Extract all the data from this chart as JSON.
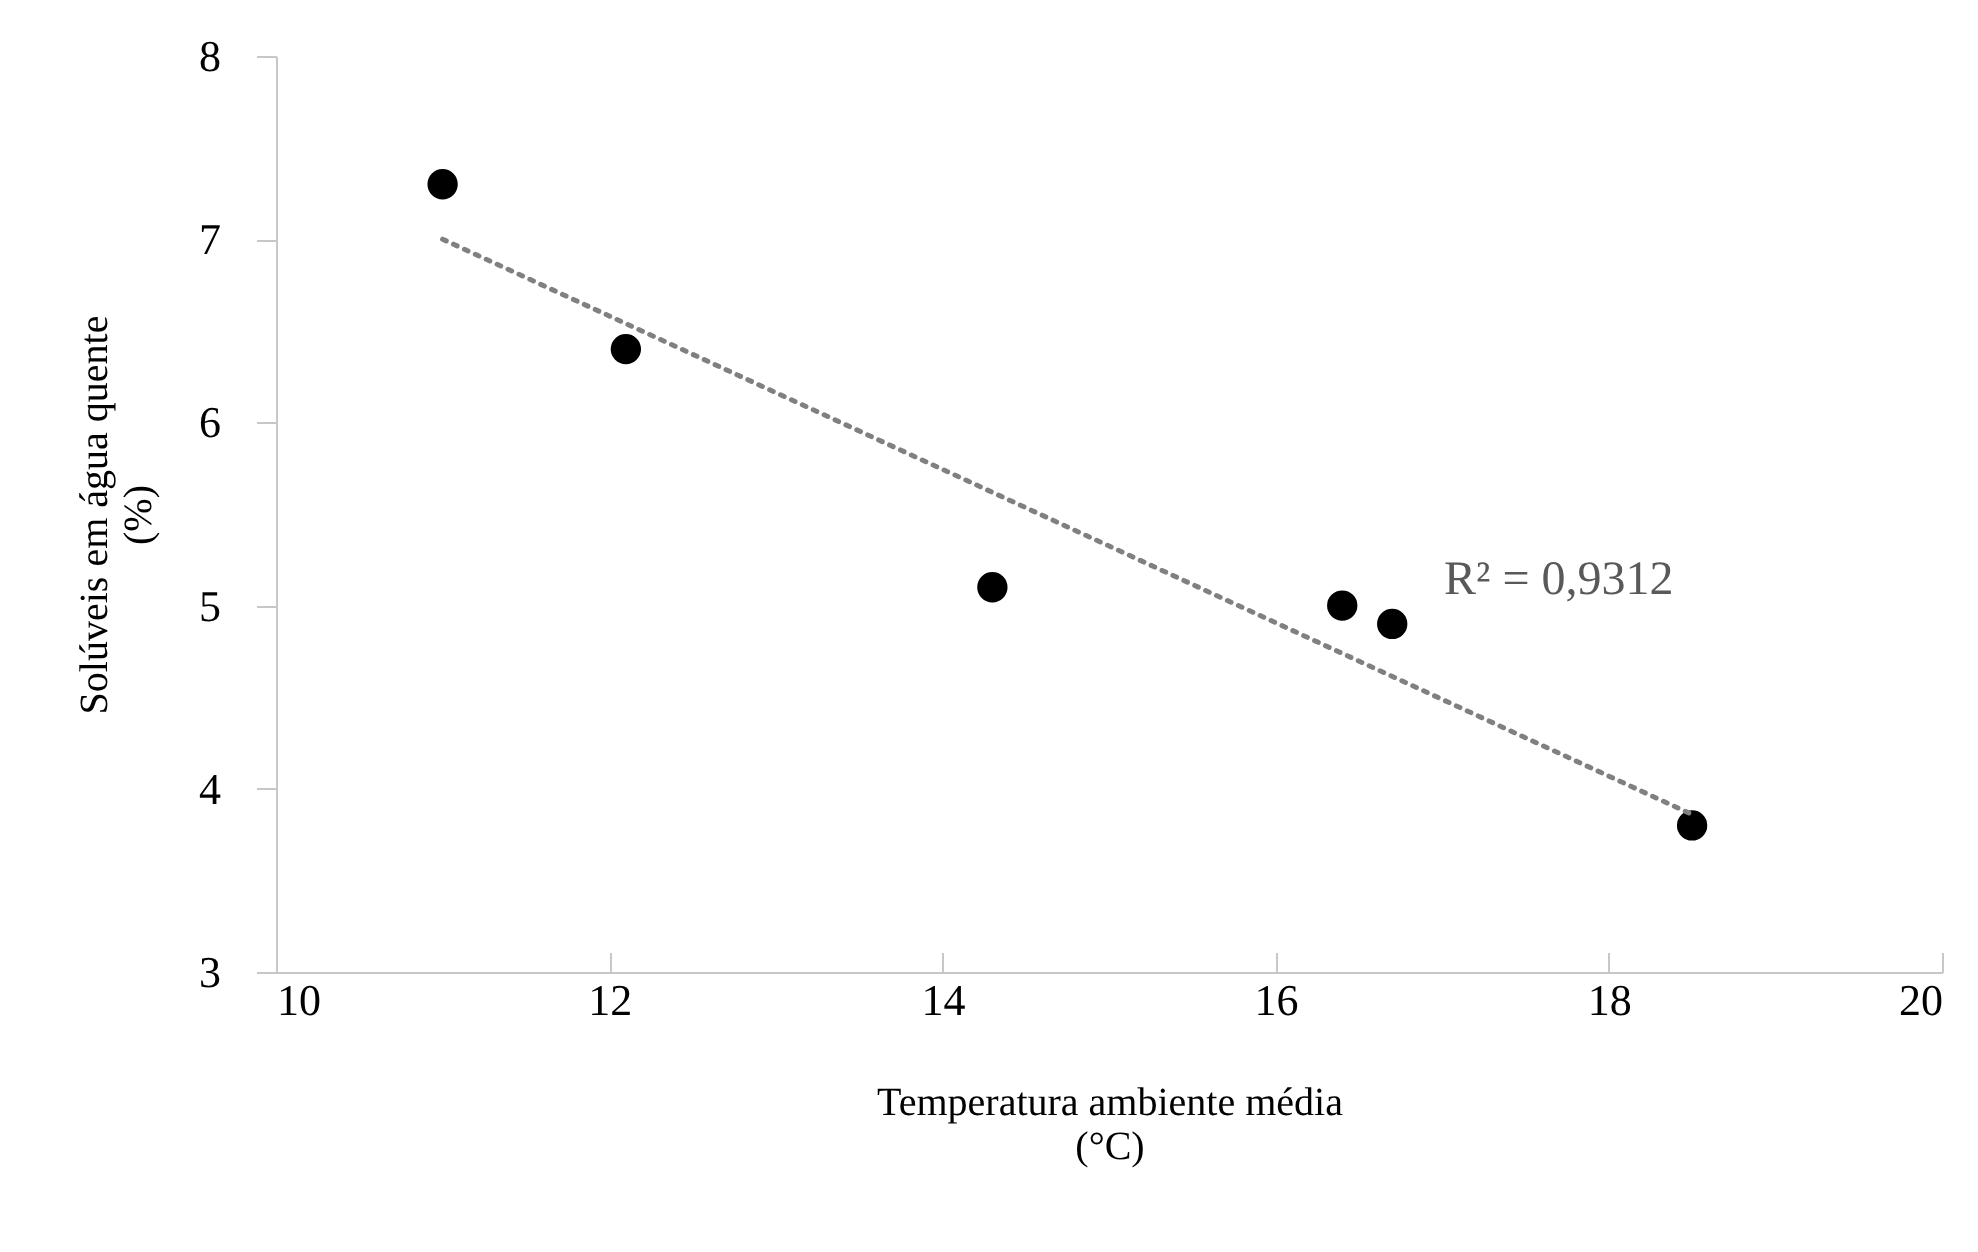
{
  "chart_data": {
    "type": "scatter",
    "xlabel": "Temperatura ambiente média (°C)",
    "ylabel": "Solúveis em água quente (%)",
    "x": [
      11.0,
      12.1,
      14.3,
      16.4,
      16.7,
      18.5
    ],
    "series": [
      {
        "type": "scatter",
        "color": "#000000",
        "marker": "circle",
        "values": [
          7.3,
          6.4,
          5.1,
          5.0,
          4.9,
          3.8
        ]
      },
      {
        "type": "line",
        "color": "#808080",
        "marker": "none",
        "line_style": "dotted",
        "x": [
          11.0,
          18.5
        ],
        "values": [
          7.0,
          3.86
        ]
      }
    ],
    "annotations": [
      "R² = 0,9312"
    ],
    "xlim": [
      10,
      20
    ],
    "xticks": [
      10,
      12,
      14,
      16,
      18,
      20
    ],
    "ylim": [
      3,
      8
    ],
    "yticks": [
      3,
      4,
      5,
      6,
      7,
      8
    ],
    "grid": false
  }
}
